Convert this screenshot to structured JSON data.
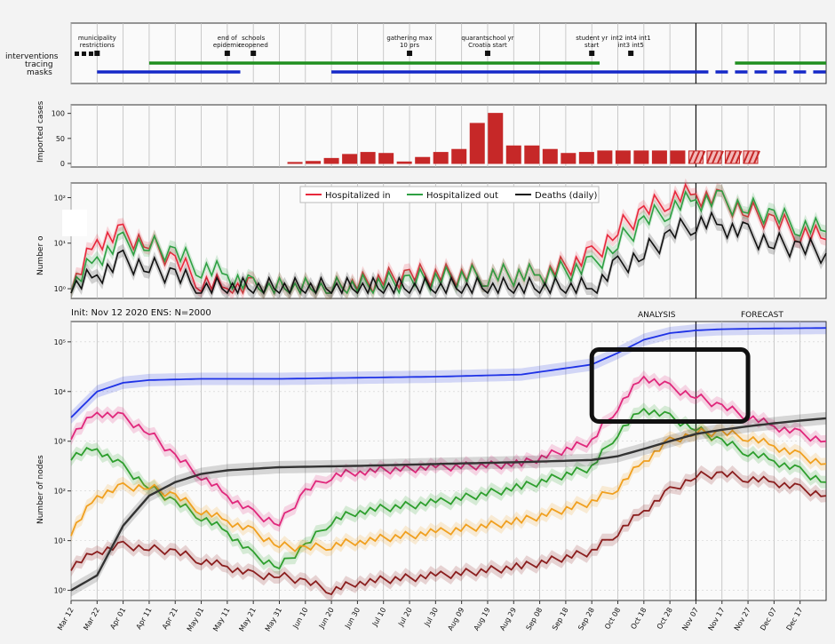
{
  "chart_data": [
    {
      "type": "timeline",
      "rows": [
        "interventions",
        "tracing",
        "masks"
      ],
      "events": [
        {
          "date": "Mar 22",
          "label": "municipality restrictions"
        },
        {
          "date": "May 11",
          "label": "end of epidemic"
        },
        {
          "date": "May 21",
          "label": "schools reopened"
        },
        {
          "date": "Jul 20",
          "label": "gathering max 10 prs"
        },
        {
          "date": "Aug 19",
          "label": "quarantschool yr Croatia start"
        },
        {
          "date": "Sep 28",
          "label": "student yr start"
        },
        {
          "date": "Oct 13",
          "label": "int2 int4 int1 int3 int5"
        }
      ],
      "tracing": [
        {
          "from": "Apr 11",
          "to": "Oct 01"
        },
        {
          "from": "Nov 22",
          "to": "Dec 27"
        }
      ],
      "masks": [
        {
          "from": "Mar 22",
          "to": "May 16"
        },
        {
          "from": "Jun 20",
          "to": "Dec 27"
        }
      ],
      "color_tracing": "#1f8f1f",
      "color_masks": "#1428c8"
    },
    {
      "type": "bar",
      "ylabel": "Imported cases",
      "yticks": [
        0,
        50,
        100
      ],
      "ylim": [
        0,
        110
      ],
      "x": [
        "Jun 06",
        "Jun 13",
        "Jun 20",
        "Jun 27",
        "Jul 04",
        "Jul 11",
        "Jul 18",
        "Jul 25",
        "Aug 01",
        "Aug 08",
        "Aug 15",
        "Aug 22",
        "Aug 29",
        "Sep 05",
        "Sep 12",
        "Sep 19",
        "Sep 26",
        "Oct 03",
        "Oct 10",
        "Oct 17",
        "Oct 24",
        "Oct 31",
        "Nov 07",
        "Nov 14",
        "Nov 21",
        "Nov 28"
      ],
      "values": [
        2,
        4,
        10,
        18,
        22,
        20,
        3,
        12,
        22,
        28,
        80,
        100,
        35,
        35,
        28,
        20,
        22,
        25,
        25,
        25,
        25,
        25,
        25,
        25,
        25,
        25
      ],
      "forecast_from": "Nov 07",
      "color": "#c62828"
    },
    {
      "type": "line",
      "ylabel": "Number o",
      "yscale": "log",
      "yticks": [
        "10⁰",
        "10¹",
        "10²"
      ],
      "legend": "top-center",
      "series": [
        {
          "name": "Hospitalized in",
          "color": "#e8283c",
          "x": [
            "Mar 12",
            "Mar 22",
            "Apr 01",
            "Apr 11",
            "Apr 21",
            "May 01",
            "May 11",
            "May 21",
            "Jun 20",
            "Jul 20",
            "Aug 19",
            "Sep 08",
            "Sep 28",
            "Oct 08",
            "Oct 18",
            "Oct 28",
            "Nov 07",
            "Nov 17",
            "Nov 27",
            "Dec 07",
            "Dec 17",
            "Dec 27"
          ],
          "values": [
            1,
            12,
            15,
            10,
            4,
            1.5,
            1,
            1,
            1,
            2,
            2,
            2,
            5,
            20,
            50,
            100,
            120,
            80,
            50,
            30,
            18,
            12
          ]
        },
        {
          "name": "Hospitalized out",
          "color": "#2ea043",
          "x": [
            "Mar 12",
            "Mar 22",
            "Apr 01",
            "Apr 11",
            "Apr 21",
            "May 01",
            "May 11",
            "May 21",
            "Jun 20",
            "Jul 20",
            "Aug 19",
            "Sep 08",
            "Sep 28",
            "Oct 08",
            "Oct 18",
            "Oct 28",
            "Nov 07",
            "Nov 17",
            "Nov 27",
            "Dec 07",
            "Dec 17",
            "Dec 27"
          ],
          "values": [
            1,
            5,
            10,
            9,
            6,
            3,
            2,
            1,
            1,
            1.5,
            2,
            2,
            3,
            10,
            30,
            60,
            90,
            80,
            60,
            40,
            25,
            18
          ]
        },
        {
          "name": "Deaths (daily)",
          "color": "#111111",
          "x": [
            "Mar 12",
            "Mar 22",
            "Apr 01",
            "Apr 11",
            "Apr 21",
            "May 01",
            "Sep 28",
            "Oct 08",
            "Oct 18",
            "Oct 28",
            "Nov 07",
            "Nov 17",
            "Nov 27",
            "Dec 07",
            "Dec 17",
            "Dec 27"
          ],
          "values": [
            1,
            2,
            4,
            3,
            2,
            1,
            1,
            3,
            6,
            15,
            30,
            25,
            15,
            10,
            8,
            6
          ]
        }
      ]
    },
    {
      "type": "line",
      "title": "Init: Nov 12 2020   ENS: N=2000",
      "annotations": [
        "ANALYSIS",
        "FORECAST"
      ],
      "ylabel": "Number of nodes",
      "yscale": "log",
      "yticks": [
        "10⁰",
        "10¹",
        "10²",
        "10³",
        "10⁴",
        "10⁵"
      ],
      "xticks": [
        "Mar 12",
        "Mar 22",
        "Apr 01",
        "Apr 11",
        "Apr 21",
        "May 01",
        "May 11",
        "May 21",
        "May 31",
        "Jun 10",
        "Jun 20",
        "Jun 30",
        "Jul 10",
        "Jul 20",
        "Jul 30",
        "Aug 09",
        "Aug 19",
        "Aug 29",
        "Sep 08",
        "Sep 18",
        "Sep 28",
        "Oct 08",
        "Oct 18",
        "Oct 28",
        "Nov 07",
        "Nov 17",
        "Nov 27",
        "Dec 07",
        "Dec 17"
      ],
      "forecast_from": "Nov 12",
      "highlight_box": {
        "from": "Sep 28",
        "to": "Nov 27",
        "ymin": 2500,
        "ymax": 70000
      },
      "series": [
        {
          "color": "#1e32e6",
          "x": [
            "Mar 12",
            "Mar 22",
            "Apr 01",
            "Apr 11",
            "May 01",
            "Jun 01",
            "Jul 01",
            "Aug 01",
            "Sep 01",
            "Sep 28",
            "Oct 08",
            "Oct 18",
            "Oct 28",
            "Nov 07",
            "Nov 17",
            "Dec 01",
            "Dec 27"
          ],
          "values": [
            3000,
            10000,
            15000,
            17000,
            18000,
            18000,
            19000,
            20000,
            22000,
            35000,
            60000,
            110000,
            150000,
            170000,
            180000,
            185000,
            190000
          ]
        },
        {
          "color": "#e0287c",
          "x": [
            "Mar 12",
            "Mar 22",
            "Apr 01",
            "Apr 11",
            "Apr 21",
            "May 01",
            "May 11",
            "May 21",
            "May 31",
            "Jun 10",
            "Jun 20",
            "Jul 01",
            "Aug 01",
            "Sep 01",
            "Sep 28",
            "Oct 08",
            "Oct 18",
            "Oct 28",
            "Nov 07",
            "Nov 17",
            "Nov 27",
            "Dec 07",
            "Dec 17",
            "Dec 27"
          ],
          "values": [
            1300,
            3800,
            3000,
            1500,
            500,
            200,
            80,
            35,
            22,
            100,
            200,
            250,
            300,
            350,
            1000,
            5000,
            20000,
            12000,
            8000,
            5000,
            3200,
            2000,
            1400,
            1000
          ]
        },
        {
          "color": "#2e9f2e",
          "x": [
            "Mar 12",
            "Mar 22",
            "Apr 01",
            "Apr 11",
            "Apr 21",
            "May 01",
            "May 11",
            "May 21",
            "May 31",
            "Jun 10",
            "Jun 20",
            "Jul 01",
            "Aug 01",
            "Sep 01",
            "Sep 28",
            "Oct 08",
            "Oct 18",
            "Oct 28",
            "Nov 07",
            "Nov 17",
            "Nov 27",
            "Dec 07",
            "Dec 17",
            "Dec 27"
          ],
          "values": [
            500,
            700,
            300,
            120,
            60,
            30,
            15,
            5,
            3,
            8,
            25,
            40,
            60,
            120,
            300,
            1500,
            4500,
            3000,
            1800,
            1000,
            600,
            400,
            250,
            150
          ]
        },
        {
          "color": "#f0a020",
          "x": [
            "Mar 12",
            "Mar 22",
            "Apr 01",
            "Apr 11",
            "Apr 21",
            "May 01",
            "May 11",
            "May 21",
            "May 31",
            "Jun 10",
            "Jun 20",
            "Jul 01",
            "Aug 01",
            "Sep 01",
            "Sep 28",
            "Oct 08",
            "Oct 18",
            "Oct 28",
            "Nov 07",
            "Nov 17",
            "Nov 27",
            "Dec 07",
            "Dec 17",
            "Dec 27"
          ],
          "values": [
            15,
            80,
            120,
            120,
            80,
            40,
            25,
            15,
            8,
            7,
            8,
            10,
            15,
            25,
            60,
            120,
            400,
            1000,
            1500,
            1500,
            1200,
            800,
            500,
            350
          ]
        },
        {
          "color": "#8b1e1e",
          "x": [
            "Mar 12",
            "Mar 22",
            "Apr 01",
            "Apr 11",
            "Apr 21",
            "May 01",
            "May 11",
            "May 21",
            "May 31",
            "Jun 10",
            "Jun 20",
            "Jul 01",
            "Aug 01",
            "Sep 01",
            "Sep 28",
            "Oct 08",
            "Oct 18",
            "Oct 28",
            "Nov 07",
            "Nov 17",
            "Nov 27",
            "Dec 07",
            "Dec 17",
            "Dec 27"
          ],
          "values": [
            3,
            6,
            8,
            7,
            6,
            4,
            3,
            2,
            2,
            1.5,
            1,
            1.5,
            2,
            3,
            6,
            15,
            40,
            100,
            200,
            220,
            180,
            150,
            110,
            80
          ]
        },
        {
          "color": "#333333",
          "x": [
            "Mar 12",
            "Mar 22",
            "Apr 01",
            "Apr 11",
            "Apr 21",
            "May 01",
            "May 11",
            "May 31",
            "Jul 01",
            "Aug 01",
            "Sep 01",
            "Sep 28",
            "Oct 08",
            "Oct 18",
            "Oct 28",
            "Nov 07",
            "Nov 17",
            "Nov 27",
            "Dec 07",
            "Dec 17",
            "Dec 27"
          ],
          "values": [
            1,
            2,
            20,
            80,
            150,
            220,
            260,
            300,
            320,
            350,
            380,
            420,
            500,
            700,
            1000,
            1400,
            1700,
            2000,
            2300,
            2600,
            2900
          ]
        }
      ]
    }
  ]
}
